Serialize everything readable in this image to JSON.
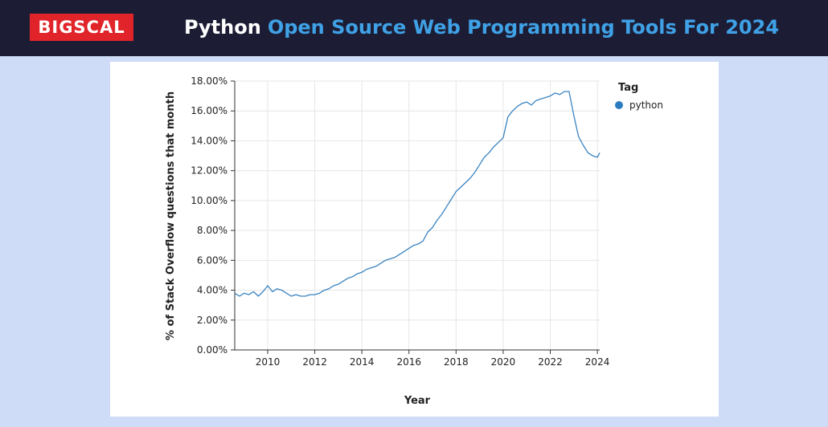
{
  "header": {
    "logo_text": "BIGSCAL",
    "title_main": "Python",
    "title_rest": "Open Source Web Programming Tools For 2024"
  },
  "colors": {
    "header_bg": "#1c1d35",
    "logo_bg": "#e0242a",
    "title_accent": "#3fa1e6",
    "page_bg": "#cfdcf7",
    "series_color": "#3a84c1"
  },
  "chart_data": {
    "type": "line",
    "xlabel": "Year",
    "ylabel": "% of Stack Overflow questions that month",
    "xlim": [
      2008.6,
      2024.1
    ],
    "ylim": [
      0,
      18
    ],
    "x_ticks": [
      "2010",
      "2012",
      "2014",
      "2016",
      "2018",
      "2020",
      "2022",
      "2024"
    ],
    "y_ticks": [
      "0.00%",
      "2.00%",
      "4.00%",
      "6.00%",
      "8.00%",
      "10.00%",
      "12.00%",
      "14.00%",
      "16.00%",
      "18.00%"
    ],
    "grid": true,
    "legend": {
      "title": "Tag",
      "position": "right"
    },
    "series": [
      {
        "name": "python",
        "x": [
          2008.6,
          2008.8,
          2009.0,
          2009.2,
          2009.4,
          2009.6,
          2009.8,
          2010.0,
          2010.2,
          2010.4,
          2010.6,
          2010.8,
          2011.0,
          2011.2,
          2011.4,
          2011.6,
          2011.8,
          2012.0,
          2012.2,
          2012.4,
          2012.6,
          2012.8,
          2013.0,
          2013.2,
          2013.4,
          2013.6,
          2013.8,
          2014.0,
          2014.2,
          2014.4,
          2014.6,
          2014.8,
          2015.0,
          2015.2,
          2015.4,
          2015.6,
          2015.8,
          2016.0,
          2016.2,
          2016.4,
          2016.6,
          2016.8,
          2017.0,
          2017.2,
          2017.4,
          2017.6,
          2017.8,
          2018.0,
          2018.2,
          2018.4,
          2018.6,
          2018.8,
          2019.0,
          2019.2,
          2019.4,
          2019.6,
          2019.8,
          2020.0,
          2020.2,
          2020.4,
          2020.6,
          2020.8,
          2021.0,
          2021.2,
          2021.4,
          2021.6,
          2021.8,
          2022.0,
          2022.2,
          2022.4,
          2022.6,
          2022.8,
          2023.0,
          2023.2,
          2023.4,
          2023.6,
          2023.8,
          2024.0,
          2024.1
        ],
        "values": [
          3.8,
          3.6,
          3.8,
          3.7,
          3.9,
          3.6,
          3.9,
          4.3,
          3.9,
          4.1,
          4.0,
          3.8,
          3.6,
          3.7,
          3.6,
          3.6,
          3.7,
          3.7,
          3.8,
          4.0,
          4.1,
          4.3,
          4.4,
          4.6,
          4.8,
          4.9,
          5.1,
          5.2,
          5.4,
          5.5,
          5.6,
          5.8,
          6.0,
          6.1,
          6.2,
          6.4,
          6.6,
          6.8,
          7.0,
          7.1,
          7.3,
          7.9,
          8.2,
          8.7,
          9.1,
          9.6,
          10.1,
          10.6,
          10.9,
          11.2,
          11.5,
          11.9,
          12.4,
          12.9,
          13.2,
          13.6,
          13.9,
          14.2,
          15.6,
          16.0,
          16.3,
          16.5,
          16.6,
          16.4,
          16.7,
          16.8,
          16.9,
          17.0,
          17.2,
          17.1,
          17.3,
          17.3,
          15.7,
          14.3,
          13.7,
          13.2,
          13.0,
          12.9,
          13.2
        ]
      }
    ]
  }
}
